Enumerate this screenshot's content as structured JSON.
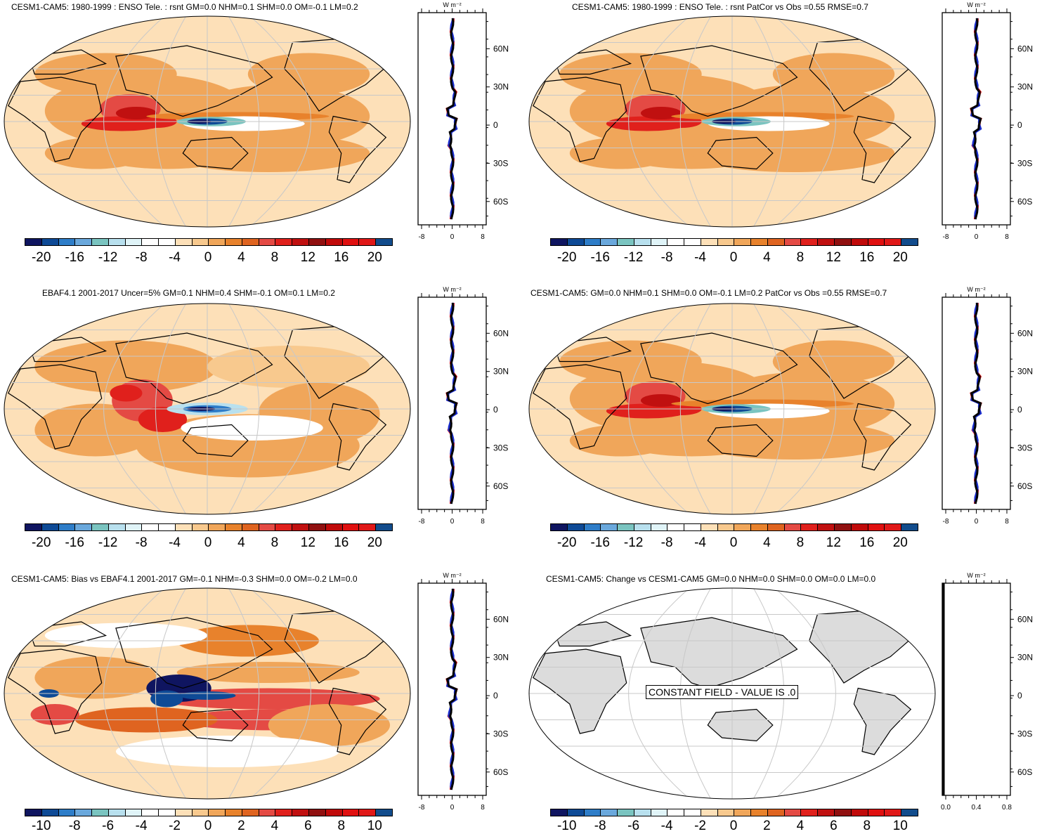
{
  "panels": [
    {
      "id": "p1",
      "title": "CESM1-CAM5: 1980-1999 : ENSO Tele. : rsnt GM=0.0 NHM=0.1 SHM=0.0 OM=-0.1 LM=0.2",
      "variant": "model",
      "colorbar": {
        "labels": [
          "-20",
          "-16",
          "-12",
          "-8",
          "-4",
          "0",
          "4",
          "8",
          "12",
          "16",
          "20"
        ]
      },
      "zonal": {
        "unit": "W m⁻²",
        "xticks": [
          "-8",
          "0",
          "8"
        ],
        "yticks": [
          "60N",
          "30N",
          "0",
          "30S",
          "60S"
        ]
      }
    },
    {
      "id": "p2",
      "title": "CESM1-CAM5: 1980-1999 : ENSO Tele. : rsnt PatCor vs Obs =0.55 RMSE=0.7",
      "variant": "model",
      "colorbar": {
        "labels": [
          "-20",
          "-16",
          "-12",
          "-8",
          "-4",
          "0",
          "4",
          "8",
          "12",
          "16",
          "20"
        ]
      },
      "zonal": {
        "unit": "W m⁻²",
        "xticks": [
          "-8",
          "0",
          "8"
        ],
        "yticks": [
          "60N",
          "30N",
          "0",
          "30S",
          "60S"
        ]
      }
    },
    {
      "id": "p3",
      "title": "EBAF4.1 2001-2017 Uncer=5% GM=0.1 NHM=0.4 SHM=-0.1 OM=0.1 LM=0.2",
      "variant": "obs",
      "colorbar": {
        "labels": [
          "-20",
          "-16",
          "-12",
          "-8",
          "-4",
          "0",
          "4",
          "8",
          "12",
          "16",
          "20"
        ]
      },
      "zonal": {
        "unit": "W m⁻²",
        "xticks": [
          "-8",
          "0",
          "8"
        ],
        "yticks": [
          "60N",
          "30N",
          "0",
          "30S",
          "60S"
        ]
      }
    },
    {
      "id": "p4",
      "title": "CESM1-CAM5: GM=0.0 NHM=0.1 SHM=0.0 OM=-0.1 LM=0.2 PatCor vs Obs =0.55 RMSE=0.7",
      "variant": "model",
      "colorbar": {
        "labels": [
          "-20",
          "-16",
          "-12",
          "-8",
          "-4",
          "0",
          "4",
          "8",
          "12",
          "16",
          "20"
        ]
      },
      "zonal": {
        "unit": "W m⁻²",
        "xticks": [
          "-8",
          "0",
          "8"
        ],
        "yticks": [
          "60N",
          "30N",
          "0",
          "30S",
          "60S"
        ]
      }
    },
    {
      "id": "p5",
      "title": "CESM1-CAM5: Bias vs EBAF4.1 2001-2017 GM=-0.1 NHM=-0.3 SHM=0.0 OM=-0.2 LM=0.0",
      "variant": "bias",
      "colorbar": {
        "labels": [
          "-10",
          "-8",
          "-6",
          "-4",
          "-2",
          "0",
          "2",
          "4",
          "6",
          "8",
          "10"
        ]
      },
      "zonal": {
        "unit": "W m⁻²",
        "xticks": [
          "-8",
          "0",
          "8"
        ],
        "yticks": [
          "60N",
          "30N",
          "0",
          "30S",
          "60S"
        ]
      }
    },
    {
      "id": "p6",
      "title": "CESM1-CAM5: Change vs CESM1-CAM5 GM=0.0 NHM=0.0 SHM=0.0 OM=0.0 LM=0.0",
      "variant": "constant",
      "constant_label": "CONSTANT FIELD - VALUE IS .0",
      "colorbar": {
        "labels": [
          "-10",
          "-8",
          "-6",
          "-4",
          "-2",
          "0",
          "2",
          "4",
          "6",
          "8",
          "10"
        ]
      },
      "zonal": {
        "unit": "W m⁻²",
        "xticks": [
          "0.0",
          "0.4",
          "0.8"
        ],
        "yticks": [
          "60N",
          "30N",
          "0",
          "30S",
          "60S"
        ]
      }
    }
  ],
  "colormap": [
    "#0f1560",
    "#0e4a96",
    "#2e7dc8",
    "#6aa8dc",
    "#7ac4c0",
    "#b8e0ee",
    "#e0f4f8",
    "#ffffff",
    "#ffffff",
    "#fde0b8",
    "#f8c98e",
    "#f0a65a",
    "#e8822c",
    "#df6420",
    "#e44a44",
    "#e0201c",
    "#c01010",
    "#901010",
    "#c00a0a",
    "#e01010",
    "#e01818",
    "#124c8c"
  ],
  "colors": {
    "land_gray": "#dcdcdc",
    "zonal_model": "#000000",
    "zonal_obs": "#e01010",
    "zonal_alt": "#1a2ed0"
  }
}
